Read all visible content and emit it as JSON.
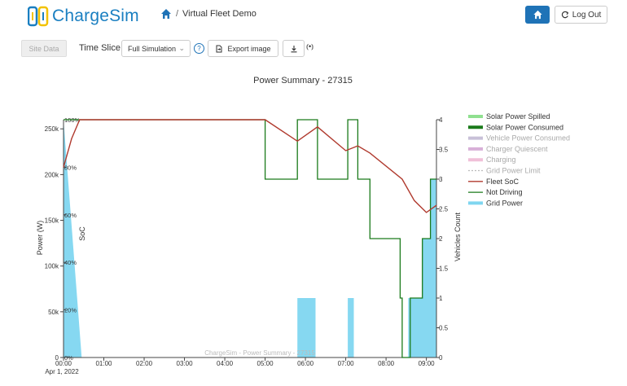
{
  "header": {
    "logo_text": "ChargeSim",
    "breadcrumb_sep": "/",
    "breadcrumb_page": "Virtual Fleet Demo",
    "logout_label": "Log Out"
  },
  "toolbar": {
    "site_data_label": "Site Data",
    "time_slice_label": "Time Slice",
    "time_slice_value": "Full Simulation",
    "help_label": "?",
    "export_label": "Export image"
  },
  "chart_data": {
    "type": "line",
    "title": "Power Summary - 27315",
    "watermark": "ChargeSim - Power Summary - 27315",
    "ylabel": "Power (W)",
    "y2label": "Vehicles Count",
    "soc_label": "SoC",
    "date_label": "Apr 1, 2022",
    "x_ticks": [
      "00:00",
      "01:00",
      "02:00",
      "03:00",
      "04:00",
      "05:00",
      "06:00",
      "07:00",
      "08:00",
      "09:00"
    ],
    "y_ticks": [
      "0",
      "50k",
      "100k",
      "150k",
      "200k",
      "250k"
    ],
    "y_tick_values": [
      0,
      50000,
      100000,
      150000,
      200000,
      250000
    ],
    "ylim": [
      0,
      260000
    ],
    "soc_ticks": [
      "0%",
      "20%",
      "40%",
      "60%",
      "80%",
      "100%"
    ],
    "soc_tick_values": [
      0,
      20,
      40,
      60,
      80,
      100
    ],
    "y2_ticks": [
      "0",
      "0.5",
      "1",
      "1.5",
      "2",
      "2.5",
      "3",
      "3.5",
      "4"
    ],
    "y2_tick_values": [
      0,
      0.5,
      1,
      1.5,
      2,
      2.5,
      3,
      3.5,
      4
    ],
    "y2lim": [
      0,
      4
    ],
    "xlim": [
      0,
      9.25
    ],
    "legend_position": "right",
    "legend": [
      {
        "name": "Solar Power Spilled",
        "color": "#90e090",
        "style": "thick",
        "dim": false
      },
      {
        "name": "Solar Power Consumed",
        "color": "#1a7a1a",
        "style": "thick",
        "dim": false
      },
      {
        "name": "Vehicle Power Consumed",
        "color": "#c8c0d8",
        "style": "thick",
        "dim": true
      },
      {
        "name": "Charger Quiescent",
        "color": "#d8b0d8",
        "style": "thick",
        "dim": true
      },
      {
        "name": "Charging",
        "color": "#f0c0d8",
        "style": "thick",
        "dim": true
      },
      {
        "name": "Grid Power Limit",
        "color": "#bbbbbb",
        "style": "dotted",
        "dim": true
      },
      {
        "name": "Fleet SoC",
        "color": "#b03a2e",
        "style": "line",
        "dim": false
      },
      {
        "name": "Not Driving",
        "color": "#1a7a1a",
        "style": "line",
        "dim": false
      },
      {
        "name": "Grid Power",
        "color": "#7fd6f0",
        "style": "thick",
        "dim": false
      }
    ],
    "series": [
      {
        "name": "Fleet SoC",
        "axis": "soc",
        "color": "#b03a2e",
        "x": [
          0,
          0.2,
          0.4,
          1.0,
          5.0,
          5.8,
          6.3,
          7.0,
          7.3,
          7.6,
          8.4,
          8.7,
          9.0,
          9.25
        ],
        "y": [
          80,
          92,
          100,
          100,
          100,
          91,
          97,
          87,
          89,
          86,
          75,
          66,
          61,
          64
        ]
      },
      {
        "name": "Not Driving",
        "axis": "vehicles",
        "color": "#1a7a1a",
        "x": [
          0,
          5.0,
          5.0,
          5.8,
          5.8,
          6.3,
          6.3,
          7.05,
          7.05,
          7.3,
          7.3,
          7.6,
          7.6,
          8.35,
          8.35,
          8.4,
          8.4,
          8.6,
          8.6,
          8.9,
          8.9,
          9.1,
          9.1,
          9.25
        ],
        "y": [
          4,
          4,
          3,
          3,
          4,
          4,
          3,
          3,
          4,
          4,
          3,
          3,
          2,
          2,
          1,
          1,
          0,
          0,
          1,
          1,
          2,
          2,
          3,
          3
        ]
      },
      {
        "name": "Grid Power",
        "axis": "power",
        "color": "#7fd6f0",
        "x": [
          0,
          0,
          0.45,
          0.45,
          5.8,
          5.8,
          6.25,
          6.25,
          7.05,
          7.05,
          7.2,
          7.2,
          8.55,
          8.55,
          8.9,
          8.9,
          9.1,
          9.1,
          9.25
        ],
        "y": [
          0,
          260000,
          0,
          0,
          0,
          65000,
          65000,
          0,
          0,
          65000,
          65000,
          0,
          0,
          65000,
          65000,
          130000,
          130000,
          195000,
          195000
        ]
      }
    ]
  }
}
